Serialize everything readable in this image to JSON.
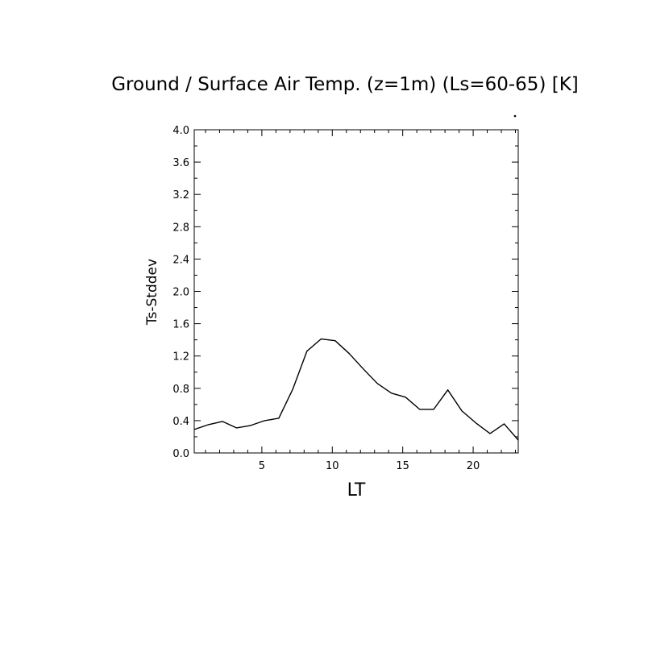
{
  "chart_data": {
    "type": "line",
    "title": "Ground / Surface Air Temp. (z=1m) (Ls=60-65) [K]",
    "xlabel": "LT",
    "ylabel": "Ts-Stddev",
    "xlim": [
      0.2,
      23.2
    ],
    "ylim": [
      0.0,
      4.0
    ],
    "x_major_ticks": [
      5,
      10,
      15,
      20
    ],
    "x_minor_step": 1,
    "y_major_ticks": [
      0.0,
      0.4,
      0.8,
      1.2,
      1.6,
      2.0,
      2.4,
      2.8,
      3.2,
      3.6,
      4.0
    ],
    "y_tick_labels": [
      "0.0",
      "0.4",
      "0.8",
      "1.2",
      "1.6",
      "2.0",
      "2.4",
      "2.8",
      "3.2",
      "3.6",
      "4.0"
    ],
    "y_minor_step": 0.2,
    "grid": false,
    "series": [
      {
        "x": [
          0.2,
          1.2,
          2.2,
          3.2,
          4.2,
          5.2,
          6.2,
          7.2,
          8.2,
          9.2,
          10.2,
          11.2,
          12.2,
          13.2,
          14.2,
          15.2,
          16.2,
          17.2,
          18.2,
          19.2,
          20.2,
          21.2,
          22.2,
          23.2
        ],
        "values": [
          0.29,
          0.35,
          0.39,
          0.31,
          0.34,
          0.4,
          0.43,
          0.79,
          1.26,
          1.41,
          1.39,
          1.23,
          1.04,
          0.86,
          0.74,
          0.69,
          0.54,
          0.54,
          0.78,
          0.52,
          0.37,
          0.24,
          0.36,
          0.16
        ],
        "color": "#000000"
      }
    ]
  }
}
